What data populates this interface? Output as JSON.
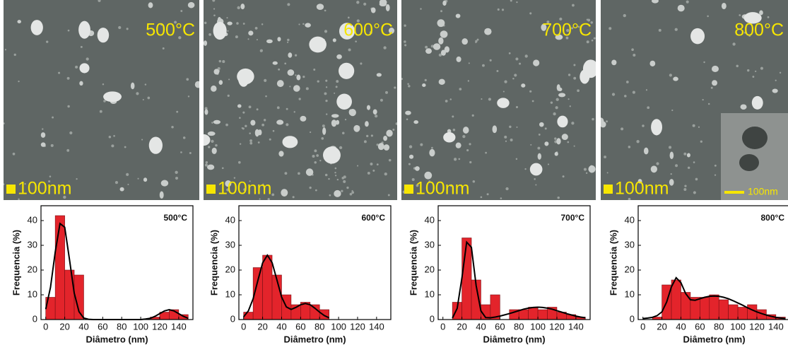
{
  "chart_data": [
    {
      "type": "histogram",
      "label": "500°C",
      "xlabel": "Diâmetro (nm)",
      "ylabel": "Frequencia (%)",
      "color": "#e3242b",
      "bins": [
        0,
        10,
        20,
        30,
        40,
        50,
        60,
        70,
        80,
        90,
        100,
        110,
        120,
        130,
        140,
        150
      ],
      "values": [
        9,
        42,
        20,
        18,
        0,
        0,
        0,
        0,
        0,
        0,
        0,
        1,
        3,
        4,
        2
      ],
      "fit": {
        "x": [
          0,
          5,
          10,
          15,
          20,
          25,
          30,
          35,
          40,
          45,
          50,
          55,
          60,
          65,
          70,
          75,
          80,
          85,
          90,
          95,
          100,
          105,
          110,
          115,
          120,
          125,
          130,
          135,
          140,
          145,
          150
        ],
        "values": [
          4.2,
          13.0,
          27.3,
          38.8,
          37.3,
          24.3,
          10.7,
          3.2,
          0.6,
          0.1,
          0,
          0,
          0,
          0,
          0,
          0,
          0,
          0,
          0,
          0,
          0,
          0.2,
          0.5,
          1.3,
          2.4,
          3.5,
          4,
          3.5,
          2.4,
          1.3,
          0.5
        ]
      },
      "xlim": [
        -5,
        155
      ],
      "ylim": [
        0,
        46
      ],
      "xticks": [
        0,
        20,
        40,
        60,
        80,
        100,
        120,
        140
      ],
      "yticks": [
        0,
        10,
        20,
        30,
        40
      ]
    },
    {
      "type": "histogram",
      "label": "600°C",
      "xlabel": "Diâmetro (nm)",
      "ylabel": "Frequencia (%)",
      "color": "#e3242b",
      "bins": [
        0,
        10,
        20,
        30,
        40,
        50,
        60,
        70,
        80,
        90,
        100,
        110,
        120,
        130,
        140,
        150
      ],
      "values": [
        3,
        21,
        26,
        18,
        10,
        6,
        7,
        6,
        4,
        0,
        0,
        0,
        0,
        0,
        0
      ],
      "fit": {
        "x": [
          0,
          5,
          10,
          15,
          20,
          25,
          30,
          35,
          40,
          45,
          50,
          55,
          60,
          65,
          70,
          75,
          80,
          85,
          90
        ],
        "values": [
          1.1,
          3.5,
          8.4,
          15.8,
          22.9,
          26,
          23,
          16.1,
          9.1,
          5.1,
          4.1,
          4.9,
          6,
          6.5,
          6,
          4.6,
          3,
          1.6,
          0.7
        ]
      },
      "xlim": [
        -5,
        155
      ],
      "ylim": [
        0,
        46
      ],
      "xticks": [
        0,
        20,
        40,
        60,
        80,
        100,
        120,
        140
      ],
      "yticks": [
        0,
        10,
        20,
        30,
        40
      ]
    },
    {
      "type": "histogram",
      "label": "700°C",
      "xlabel": "Diâmetro (nm)",
      "ylabel": "Frequencia (%)",
      "color": "#e3242b",
      "bins": [
        0,
        10,
        20,
        30,
        40,
        50,
        60,
        70,
        80,
        90,
        100,
        110,
        120,
        130,
        140,
        150
      ],
      "values": [
        0,
        7,
        33,
        16,
        6,
        10,
        0,
        4,
        4,
        5,
        4,
        5,
        3,
        2,
        1
      ],
      "fit": {
        "x": [
          10,
          15,
          20,
          25,
          30,
          35,
          40,
          45,
          50,
          55,
          60,
          65,
          70,
          75,
          80,
          85,
          90,
          95,
          100,
          105,
          110,
          115,
          120,
          125,
          130,
          135,
          140,
          145,
          150
        ],
        "values": [
          0.6,
          4.5,
          16.8,
          31.3,
          29.2,
          13.7,
          3.5,
          0.8,
          0.7,
          1.0,
          1.4,
          1.9,
          2.4,
          3.0,
          3.6,
          4.2,
          4.6,
          4.9,
          5,
          4.9,
          4.6,
          4.2,
          3.6,
          3.0,
          2.4,
          1.9,
          1.4,
          1.0,
          0.7
        ]
      },
      "xlim": [
        -5,
        155
      ],
      "ylim": [
        0,
        46
      ],
      "xticks": [
        0,
        20,
        40,
        60,
        80,
        100,
        120,
        140
      ],
      "yticks": [
        0,
        10,
        20,
        30,
        40
      ]
    },
    {
      "type": "histogram",
      "label": "800°C",
      "xlabel": "Diâmetro (nm)",
      "ylabel": "Frequencia (%)",
      "color": "#e3242b",
      "bins": [
        0,
        10,
        20,
        30,
        40,
        50,
        60,
        70,
        80,
        90,
        100,
        110,
        120,
        130,
        140,
        150
      ],
      "values": [
        0,
        1,
        14,
        16,
        11,
        9,
        9,
        10,
        8,
        6,
        5,
        6,
        4,
        2,
        1
      ],
      "fit": {
        "x": [
          0,
          5,
          10,
          15,
          20,
          25,
          30,
          35,
          40,
          45,
          50,
          55,
          60,
          65,
          70,
          75,
          80,
          85,
          90,
          95,
          100,
          105,
          110,
          115,
          120,
          125,
          130,
          135,
          140,
          145,
          150
        ],
        "values": [
          0.4,
          0.6,
          0.9,
          1.6,
          3.1,
          7.1,
          13.2,
          16.9,
          14.9,
          10.5,
          8.0,
          7.8,
          8.4,
          9.0,
          9.4,
          9.5,
          9.4,
          9.0,
          8.4,
          7.6,
          6.7,
          5.8,
          4.8,
          3.9,
          3.1,
          2.4,
          1.8,
          1.3,
          0.9,
          0.6,
          0.4
        ]
      },
      "xlim": [
        -5,
        155
      ],
      "ylim": [
        0,
        46
      ],
      "xticks": [
        0,
        20,
        40,
        60,
        80,
        100,
        120,
        140
      ],
      "yticks": [
        0,
        10,
        20,
        30,
        40
      ]
    }
  ],
  "images": [
    {
      "label": "500°C",
      "scale_bar": "100nm"
    },
    {
      "label": "600°C",
      "scale_bar": "100nm"
    },
    {
      "label": "700°C",
      "scale_bar": "100nm"
    },
    {
      "label": "800°C",
      "scale_bar": "100nm"
    }
  ],
  "inset": {
    "scale_bar": "100nm"
  }
}
